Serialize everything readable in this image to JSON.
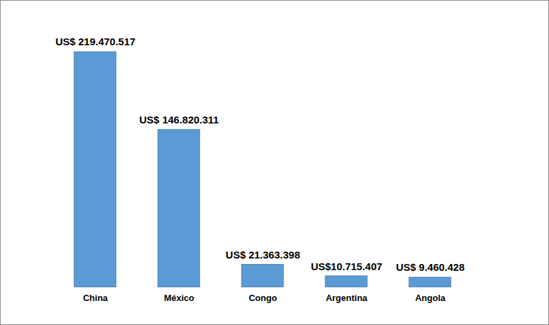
{
  "chart_data": {
    "type": "bar",
    "categories": [
      "China",
      "México",
      "Congo",
      "Argentina",
      "Angola"
    ],
    "values": [
      219470517,
      146820311,
      21363398,
      10715407,
      9460428
    ],
    "value_labels": [
      "US$ 219.470.517",
      "US$ 146.820.311",
      "US$ 21.363.398",
      "US$10.715.407",
      "US$ 9.460.428"
    ],
    "color": "#5b9bd5",
    "data_labels": true,
    "tick_labels": "x",
    "grid": false
  }
}
